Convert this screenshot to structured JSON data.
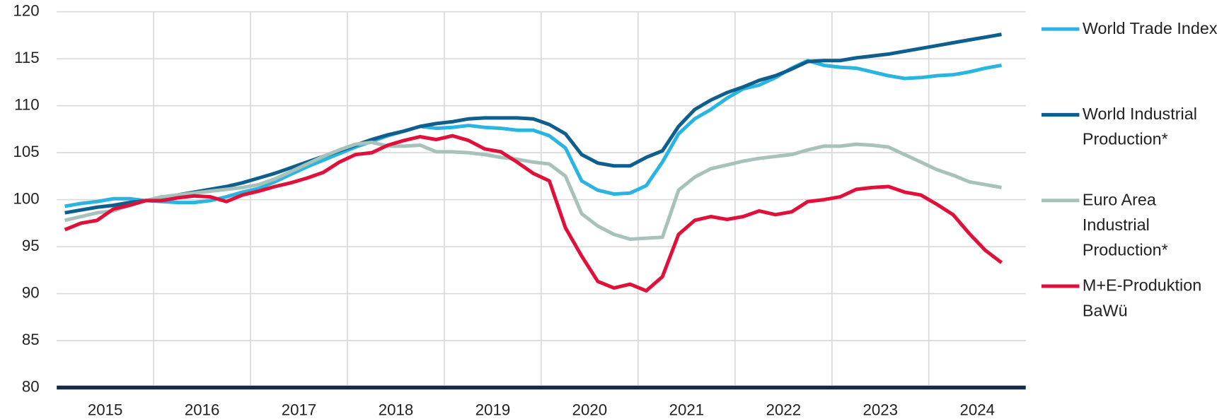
{
  "chart_data": {
    "type": "line",
    "categories": [
      null,
      null,
      null,
      "2015",
      null,
      null,
      null,
      null,
      null,
      "2016",
      null,
      null,
      null,
      null,
      null,
      "2017",
      null,
      null,
      null,
      null,
      null,
      "2018",
      null,
      null,
      null,
      null,
      null,
      "2019",
      null,
      null,
      null,
      null,
      null,
      "2020",
      null,
      null,
      null,
      null,
      null,
      "2021",
      null,
      null,
      null,
      null,
      null,
      "2022",
      null,
      null,
      null,
      null,
      null,
      "2023",
      null,
      null,
      null,
      null,
      null,
      "2024",
      null
    ],
    "series": [
      {
        "name": "World Trade Index",
        "color": "#29b5e0",
        "values": [
          99.3,
          99.6,
          99.8,
          100.1,
          100.1,
          99.9,
          99.8,
          99.7,
          99.7,
          99.9,
          100.3,
          100.8,
          101.2,
          101.9,
          102.7,
          103.5,
          104.2,
          104.9,
          105.6,
          106.2,
          106.8,
          107.3,
          107.8,
          107.6,
          107.7,
          107.9,
          107.7,
          107.6,
          107.4,
          107.4,
          106.8,
          105.5,
          102.0,
          101.0,
          100.6,
          100.7,
          101.5,
          104.0,
          107.0,
          108.6,
          109.6,
          110.8,
          111.8,
          112.2,
          113.0,
          114.0,
          114.8,
          114.3,
          114.1,
          114.0,
          113.6,
          113.2,
          112.9,
          113.0,
          113.2,
          113.3,
          113.6,
          114.0,
          114.3
        ]
      },
      {
        "name": "World Industrial Production*",
        "color": "#0e5f8d",
        "values": [
          98.6,
          98.9,
          99.2,
          99.4,
          99.7,
          99.9,
          100.2,
          100.5,
          100.8,
          101.1,
          101.4,
          101.8,
          102.3,
          102.8,
          103.4,
          104.0,
          104.6,
          105.2,
          105.8,
          106.4,
          106.9,
          107.3,
          107.8,
          108.1,
          108.3,
          108.6,
          108.7,
          108.7,
          108.7,
          108.6,
          108.0,
          107.0,
          104.8,
          103.9,
          103.6,
          103.6,
          104.5,
          105.2,
          107.8,
          109.6,
          110.6,
          111.4,
          112.0,
          112.7,
          113.2,
          113.9,
          114.7,
          114.8,
          114.8,
          115.1,
          115.3,
          115.5,
          115.8,
          116.1,
          116.4,
          116.7,
          117.0,
          117.3,
          117.6
        ]
      },
      {
        "name": "Euro Area Industrial Production*",
        "color": "#a7c2ba",
        "values": [
          97.8,
          98.2,
          98.6,
          98.8,
          99.4,
          99.9,
          100.3,
          100.5,
          100.7,
          100.9,
          101.1,
          101.3,
          101.6,
          102.2,
          103.0,
          103.8,
          104.6,
          105.3,
          105.9,
          106.1,
          105.7,
          105.7,
          105.8,
          105.1,
          105.1,
          105.0,
          104.8,
          104.5,
          104.3,
          104.0,
          103.8,
          102.5,
          98.5,
          97.2,
          96.3,
          95.8,
          95.9,
          96.0,
          101.0,
          102.4,
          103.3,
          103.7,
          104.1,
          104.4,
          104.6,
          104.8,
          105.3,
          105.7,
          105.7,
          105.9,
          105.8,
          105.6,
          104.8,
          104.0,
          103.2,
          102.6,
          101.9,
          101.6,
          101.3
        ]
      },
      {
        "name": "M+E-Produktion BaWü",
        "color": "#e0103a",
        "values": [
          96.8,
          97.5,
          97.8,
          99.0,
          99.4,
          99.9,
          99.9,
          100.2,
          100.4,
          100.3,
          99.8,
          100.5,
          100.9,
          101.4,
          101.8,
          102.3,
          102.9,
          104.0,
          104.8,
          105.0,
          105.8,
          106.3,
          106.7,
          106.4,
          106.8,
          106.3,
          105.4,
          105.1,
          104.0,
          102.8,
          102.0,
          97.0,
          94.0,
          91.3,
          90.6,
          91.0,
          90.3,
          91.8,
          96.3,
          97.8,
          98.2,
          97.9,
          98.2,
          98.8,
          98.4,
          98.7,
          99.8,
          100.0,
          100.3,
          101.1,
          101.3,
          101.4,
          100.8,
          100.5,
          99.5,
          98.4,
          96.4,
          94.6,
          93.3
        ]
      }
    ],
    "ylim": [
      80,
      120
    ],
    "yticks": [
      80,
      85,
      90,
      95,
      100,
      105,
      110,
      115,
      120
    ],
    "grid": true,
    "legend": "right"
  }
}
